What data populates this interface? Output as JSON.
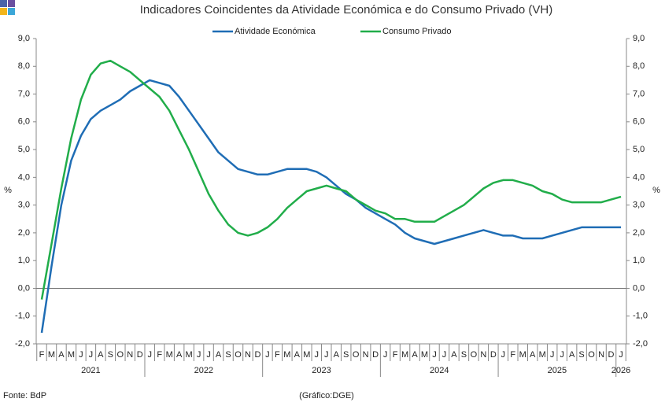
{
  "chart_data": {
    "type": "line",
    "title": "Indicadores Coincidentes da Atividade Económica e do Consumo Privado (VH)",
    "ylabel": "%",
    "y2label": "%",
    "source": "Fonte: BdP",
    "credit": "(Gráfico:DGE)",
    "categories": [
      "F",
      "M",
      "A",
      "M",
      "J",
      "J",
      "A",
      "S",
      "O",
      "N",
      "D",
      "J",
      "F",
      "M",
      "A",
      "M",
      "J",
      "J",
      "A",
      "S",
      "O",
      "N",
      "D",
      "J",
      "F",
      "M",
      "A",
      "M",
      "J",
      "J",
      "A",
      "S",
      "O",
      "N",
      "D",
      "J",
      "F",
      "M",
      "A",
      "M",
      "J",
      "J",
      "A",
      "S",
      "O",
      "N",
      "D",
      "J",
      "F",
      "M",
      "A",
      "M",
      "J",
      "J",
      "A",
      "S",
      "O",
      "N",
      "D",
      "J"
    ],
    "year_labels": [
      "2021",
      "2022",
      "2023",
      "2024",
      "2025",
      "2026"
    ],
    "series": [
      {
        "name": "Atividade Económica",
        "color": "#1f6db5",
        "values": [
          -1.6,
          0.8,
          3.0,
          4.6,
          5.5,
          6.1,
          6.4,
          6.6,
          6.8,
          7.1,
          7.3,
          7.5,
          7.4,
          7.3,
          6.9,
          6.4,
          5.9,
          5.4,
          4.9,
          4.6,
          4.3,
          4.2,
          4.1,
          4.1,
          4.2,
          4.3,
          4.3,
          4.3,
          4.2,
          4.0,
          3.7,
          3.4,
          3.2,
          2.9,
          2.7,
          2.5,
          2.3,
          2.0,
          1.8,
          1.7,
          1.6,
          1.7,
          1.8,
          1.9,
          2.0,
          2.1,
          2.0,
          1.9,
          1.9,
          1.8,
          1.8,
          1.8,
          1.9,
          2.0,
          2.1,
          2.2,
          2.2,
          2.2,
          2.2,
          2.2
        ]
      },
      {
        "name": "Consumo Privado",
        "color": "#21ad4a",
        "values": [
          -0.4,
          1.6,
          3.6,
          5.4,
          6.8,
          7.7,
          8.1,
          8.2,
          8.0,
          7.8,
          7.5,
          7.2,
          6.9,
          6.4,
          5.7,
          5.0,
          4.2,
          3.4,
          2.8,
          2.3,
          2.0,
          1.9,
          2.0,
          2.2,
          2.5,
          2.9,
          3.2,
          3.5,
          3.6,
          3.7,
          3.6,
          3.5,
          3.2,
          3.0,
          2.8,
          2.7,
          2.5,
          2.5,
          2.4,
          2.4,
          2.4,
          2.6,
          2.8,
          3.0,
          3.3,
          3.6,
          3.8,
          3.9,
          3.9,
          3.8,
          3.7,
          3.5,
          3.4,
          3.2,
          3.1,
          3.1,
          3.1,
          3.1,
          3.2,
          3.3
        ]
      }
    ],
    "ylim": [
      -2,
      9
    ],
    "yticks": [
      {
        "value": -2,
        "label": "-2,0"
      },
      {
        "value": -1,
        "label": "-1,0"
      },
      {
        "value": 0,
        "label": "0,0"
      },
      {
        "value": 1,
        "label": "1,0"
      },
      {
        "value": 2,
        "label": "2,0"
      },
      {
        "value": 3,
        "label": "3,0"
      },
      {
        "value": 4,
        "label": "4,0"
      },
      {
        "value": 5,
        "label": "5,0"
      },
      {
        "value": 6,
        "label": "6,0"
      },
      {
        "value": 7,
        "label": "7,0"
      },
      {
        "value": 8,
        "label": "8,0"
      },
      {
        "value": 9,
        "label": "9,0"
      }
    ],
    "y2lim": [
      -2,
      9
    ],
    "y2ticks": [
      {
        "value": -2,
        "label": "-2,0"
      },
      {
        "value": -1,
        "label": "-1,0"
      },
      {
        "value": 0,
        "label": "0,0"
      },
      {
        "value": 1,
        "label": "1,0"
      },
      {
        "value": 2,
        "label": "2,0"
      },
      {
        "value": 3,
        "label": "3,0"
      },
      {
        "value": 4,
        "label": "4,0"
      },
      {
        "value": 5,
        "label": "5,0"
      },
      {
        "value": 6,
        "label": "6,0"
      },
      {
        "value": 7,
        "label": "7,0"
      },
      {
        "value": 8,
        "label": "8,0"
      },
      {
        "value": 9,
        "label": "9,0"
      }
    ],
    "grid": false,
    "legend": "top"
  }
}
